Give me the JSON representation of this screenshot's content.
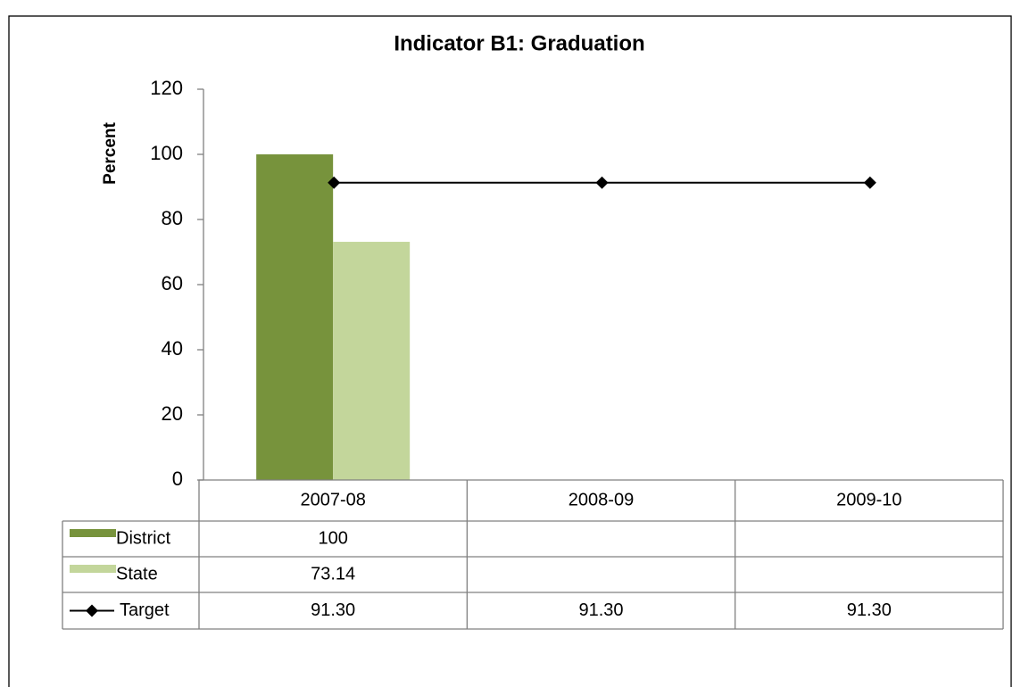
{
  "chart_data": {
    "type": "bar",
    "title": "Indicator B1: Graduation",
    "y_label": "Percent",
    "categories": [
      "2007-08",
      "2008-09",
      "2009-10"
    ],
    "series": [
      {
        "name": "District",
        "type": "bar",
        "color": "#77933c",
        "values": [
          100,
          null,
          null
        ]
      },
      {
        "name": "State",
        "type": "bar",
        "color": "#c3d69b",
        "values": [
          73.14,
          null,
          null
        ]
      },
      {
        "name": "Target",
        "type": "line",
        "color": "#000000",
        "values": [
          91.3,
          91.3,
          91.3
        ],
        "value_labels": [
          "91.30",
          "91.30",
          "91.30"
        ]
      }
    ],
    "ylim": [
      0,
      120
    ],
    "yticks": [
      0,
      20,
      40,
      60,
      80,
      100,
      120
    ],
    "grid": false,
    "data_table": true
  }
}
